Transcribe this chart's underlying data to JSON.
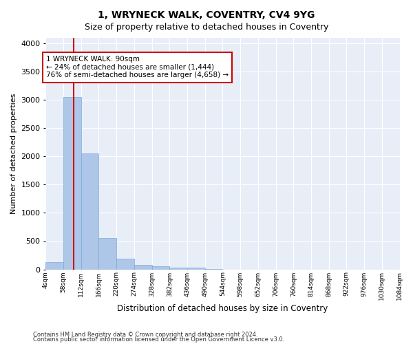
{
  "title": "1, WRYNECK WALK, COVENTRY, CV4 9YG",
  "subtitle": "Size of property relative to detached houses in Coventry",
  "xlabel": "Distribution of detached houses by size in Coventry",
  "ylabel": "Number of detached properties",
  "footnote1": "Contains HM Land Registry data © Crown copyright and database right 2024.",
  "footnote2": "Contains public sector information licensed under the Open Government Licence v3.0.",
  "bar_heights": [
    130,
    3055,
    2055,
    560,
    195,
    75,
    52,
    35,
    28,
    5,
    0,
    0,
    0,
    0,
    0,
    0,
    0,
    0,
    0,
    0
  ],
  "bar_color": "#aec6e8",
  "bar_edge_color": "#7aabda",
  "vline_bin": 1.5,
  "vline_color": "#cc0000",
  "annotation_text": "1 WRYNECK WALK: 90sqm\n← 24% of detached houses are smaller (1,444)\n76% of semi-detached houses are larger (4,658) →",
  "annotation_box_color": "#ffffff",
  "annotation_box_edge": "#cc0000",
  "ylim": [
    0,
    4100
  ],
  "background_color": "#e8eef7",
  "grid_color": "#ffffff",
  "tick_labels": [
    "4sqm",
    "58sqm",
    "112sqm",
    "166sqm",
    "220sqm",
    "274sqm",
    "328sqm",
    "382sqm",
    "436sqm",
    "490sqm",
    "544sqm",
    "598sqm",
    "652sqm",
    "706sqm",
    "760sqm",
    "814sqm",
    "868sqm",
    "922sqm",
    "976sqm",
    "1030sqm",
    "1084sqm"
  ],
  "yticks": [
    0,
    500,
    1000,
    1500,
    2000,
    2500,
    3000,
    3500,
    4000
  ]
}
